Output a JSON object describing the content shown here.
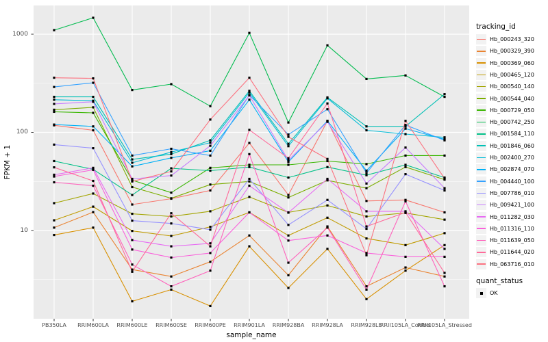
{
  "theme": {
    "panel_bg": "#EBEBEB",
    "grid_color": "#FFFFFF",
    "tick_color": "#333333",
    "tick_label_color": "#4D4D4D",
    "point_color": "#000000",
    "legend_key_bg": "#F2F2F2",
    "background": "#FFFFFF"
  },
  "chart_data": {
    "type": "line",
    "title": "",
    "xlabel": "sample_name",
    "ylabel": "FPKM + 1",
    "y_scale": "log10",
    "y_ticks": [
      10,
      100,
      1000
    ],
    "y_minor_ticks": [
      3.162,
      31.62,
      316.2
    ],
    "ylim": [
      1.26,
      1963
    ],
    "grid": true,
    "legend_position": "right",
    "legend_title": "tracking_id",
    "legend2_title": "quant_status",
    "legend2_items": [
      {
        "label": "OK"
      }
    ],
    "categories": [
      "PB350LA",
      "RRIM600LA",
      "RRIM600LE",
      "RRIM600SE",
      "RRIM600PE",
      "RRIM901LA",
      "RRIM928BA",
      "RRIM928LA",
      "RRIM928LE",
      "RRII105LA_Control",
      "RRII105LA_Stressed"
    ],
    "series": [
      {
        "name": "Hb_000243_320",
        "color": "#F8766D",
        "values": [
          118,
          105,
          18.4,
          21.1,
          25.6,
          78,
          23,
          131,
          20,
          20.5,
          15.3
        ]
      },
      {
        "name": "Hb_000329_390",
        "color": "#EA8331",
        "values": [
          10.7,
          15.4,
          4.0,
          3.4,
          4.8,
          8.9,
          3.5,
          11,
          2.7,
          4.2,
          3.4
        ]
      },
      {
        "name": "Hb_000369_060",
        "color": "#D89000",
        "values": [
          9.0,
          10.7,
          1.9,
          2.5,
          1.7,
          6.9,
          2.6,
          6.5,
          2.0,
          3.9,
          7.1
        ]
      },
      {
        "name": "Hb_000465_120",
        "color": "#C09B00",
        "values": [
          12.7,
          17.5,
          9.9,
          8.8,
          10.9,
          15.3,
          8.9,
          13.5,
          8.3,
          7.1,
          9.4
        ]
      },
      {
        "name": "Hb_000540_140",
        "color": "#A3A500",
        "values": [
          19,
          23.8,
          14.8,
          13.9,
          15.7,
          22,
          15.3,
          18,
          13.9,
          15.1,
          12.9
        ]
      },
      {
        "name": "Hb_000544_040",
        "color": "#7CAE00",
        "values": [
          170,
          180,
          27.7,
          21.3,
          29.4,
          31.6,
          21.7,
          32.4,
          27,
          44.3,
          33
        ]
      },
      {
        "name": "Hb_000729_050",
        "color": "#39B600",
        "values": [
          162,
          158,
          32.6,
          24.3,
          43.5,
          46.7,
          46.7,
          51,
          47.5,
          58,
          58
        ]
      },
      {
        "name": "Hb_000742_250",
        "color": "#00BB4E",
        "values": [
          1100,
          1470,
          270,
          310,
          185,
          1030,
          126,
          770,
          350,
          380,
          230
        ]
      },
      {
        "name": "Hb_001584_110",
        "color": "#00C087",
        "values": [
          51,
          42,
          23,
          43,
          40.7,
          44.3,
          34.6,
          44.3,
          36.6,
          46.7,
          34.6
        ]
      },
      {
        "name": "Hb_001846_060",
        "color": "#00C0B5",
        "values": [
          230,
          230,
          53,
          60,
          83,
          265,
          76.4,
          227,
          115,
          115,
          245
        ]
      },
      {
        "name": "Hb_002400_270",
        "color": "#00BCD8",
        "values": [
          215,
          210,
          49,
          63,
          78.5,
          255,
          72.3,
          222,
          105,
          96,
          89
        ]
      },
      {
        "name": "Hb_002874_070",
        "color": "#00B0F6",
        "values": [
          120,
          115,
          45,
          55,
          65,
          215,
          50,
          131,
          40.7,
          109,
          85
        ]
      },
      {
        "name": "Hb_004440_100",
        "color": "#35A2FF",
        "values": [
          290,
          320,
          58,
          68,
          58,
          240,
          95,
          172,
          38.5,
          119,
          83
        ]
      },
      {
        "name": "Hb_007786_010",
        "color": "#9590FF",
        "values": [
          75,
          69,
          12.6,
          11.8,
          10.2,
          33.6,
          11.4,
          20.5,
          10.4,
          37.5,
          25.6
        ]
      },
      {
        "name": "Hb_009421_100",
        "color": "#C77CFF",
        "values": [
          195,
          205,
          33.6,
          36.3,
          73,
          238,
          52,
          128,
          30.1,
          70,
          27
        ]
      },
      {
        "name": "Hb_011282_030",
        "color": "#E76BF3",
        "values": [
          37,
          43.5,
          8.0,
          6.9,
          7.4,
          28.6,
          15.2,
          33.6,
          15.7,
          15.7,
          6.5
        ]
      },
      {
        "name": "Hb_011316_110",
        "color": "#FA62DB",
        "values": [
          35.5,
          41.5,
          6.4,
          5.3,
          5.9,
          15.3,
          7.9,
          8.9,
          5.9,
          5.4,
          5.4
        ]
      },
      {
        "name": "Hb_011639_050",
        "color": "#FF62BC",
        "values": [
          31,
          28.6,
          4.5,
          2.7,
          3.9,
          60,
          4.7,
          10.7,
          2.5,
          19.8,
          2.7
        ]
      },
      {
        "name": "Hb_011644_020",
        "color": "#FF6A9A",
        "values": [
          44,
          32,
          3.8,
          15,
          6.9,
          106,
          54.5,
          197,
          11,
          15.3,
          3.7
        ]
      },
      {
        "name": "Hb_063716_010",
        "color": "#FC717F",
        "values": [
          360,
          355,
          31.6,
          40,
          135,
          360,
          90,
          53.6,
          5.6,
          131,
          33.9
        ]
      }
    ]
  }
}
